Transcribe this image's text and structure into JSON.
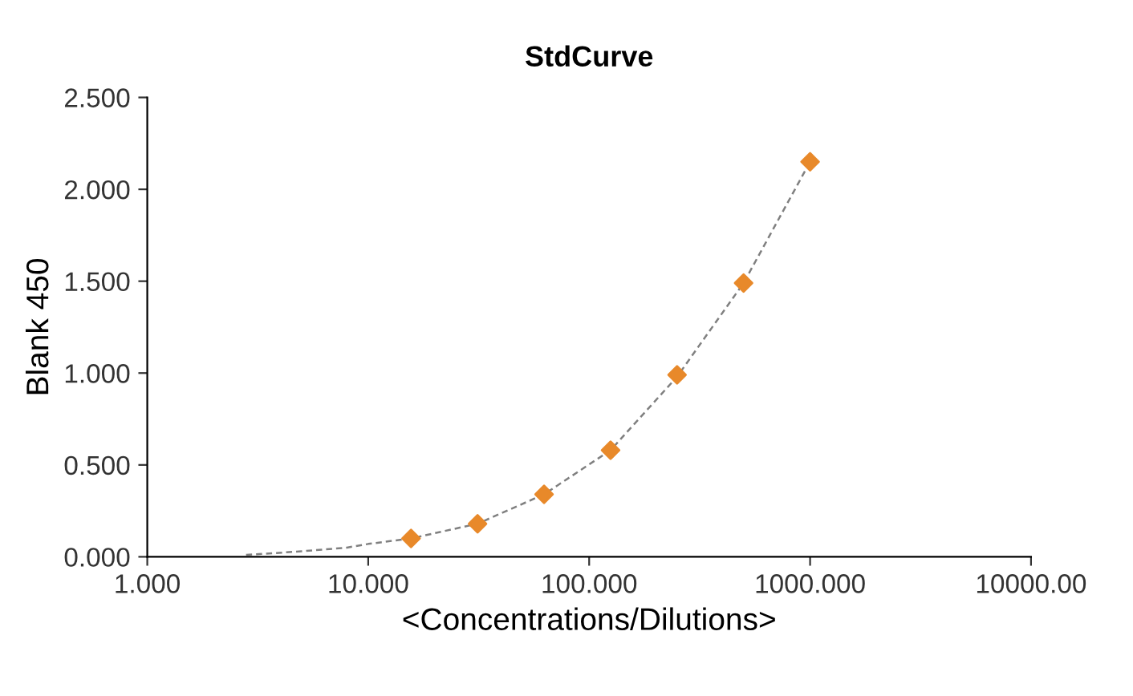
{
  "chart_data": {
    "type": "scatter",
    "title": "StdCurve",
    "xlabel": "<Concentrations/Dilutions>",
    "ylabel": "Blank 450",
    "log": "x",
    "xlim": [
      1,
      10000
    ],
    "xticks": [
      {
        "value": 1,
        "label": "1.000"
      },
      {
        "value": 10,
        "label": "10.000"
      },
      {
        "value": 100,
        "label": "100.000"
      },
      {
        "value": 1000,
        "label": "1000.000"
      },
      {
        "value": 10000,
        "label": "10000.00"
      }
    ],
    "ylim": [
      0,
      2.5
    ],
    "yticks": [
      {
        "value": 0,
        "label": "0.000"
      },
      {
        "value": 0.5,
        "label": "0.500"
      },
      {
        "value": 1,
        "label": "1.000"
      },
      {
        "value": 1.5,
        "label": "1.500"
      },
      {
        "value": 2,
        "label": "2.000"
      },
      {
        "value": 2.5,
        "label": "2.500"
      }
    ],
    "grid": false,
    "legend": false,
    "series": [
      {
        "type": "line",
        "color": "#808080",
        "line_style": "dashed",
        "marker": "none",
        "x": [
          2.8,
          5,
          8,
          10,
          15.625,
          31.25,
          62.5,
          125,
          250,
          500,
          1000
        ],
        "values": [
          0.01,
          0.03,
          0.05,
          0.07,
          0.1,
          0.18,
          0.34,
          0.58,
          0.98,
          1.49,
          2.15
        ]
      },
      {
        "color": "#e8892a",
        "marker": "diamond",
        "x": [
          15.625,
          31.25,
          62.5,
          125,
          250,
          500,
          1000
        ],
        "values": [
          0.1,
          0.18,
          0.34,
          0.58,
          0.99,
          1.49,
          2.15
        ]
      }
    ]
  }
}
